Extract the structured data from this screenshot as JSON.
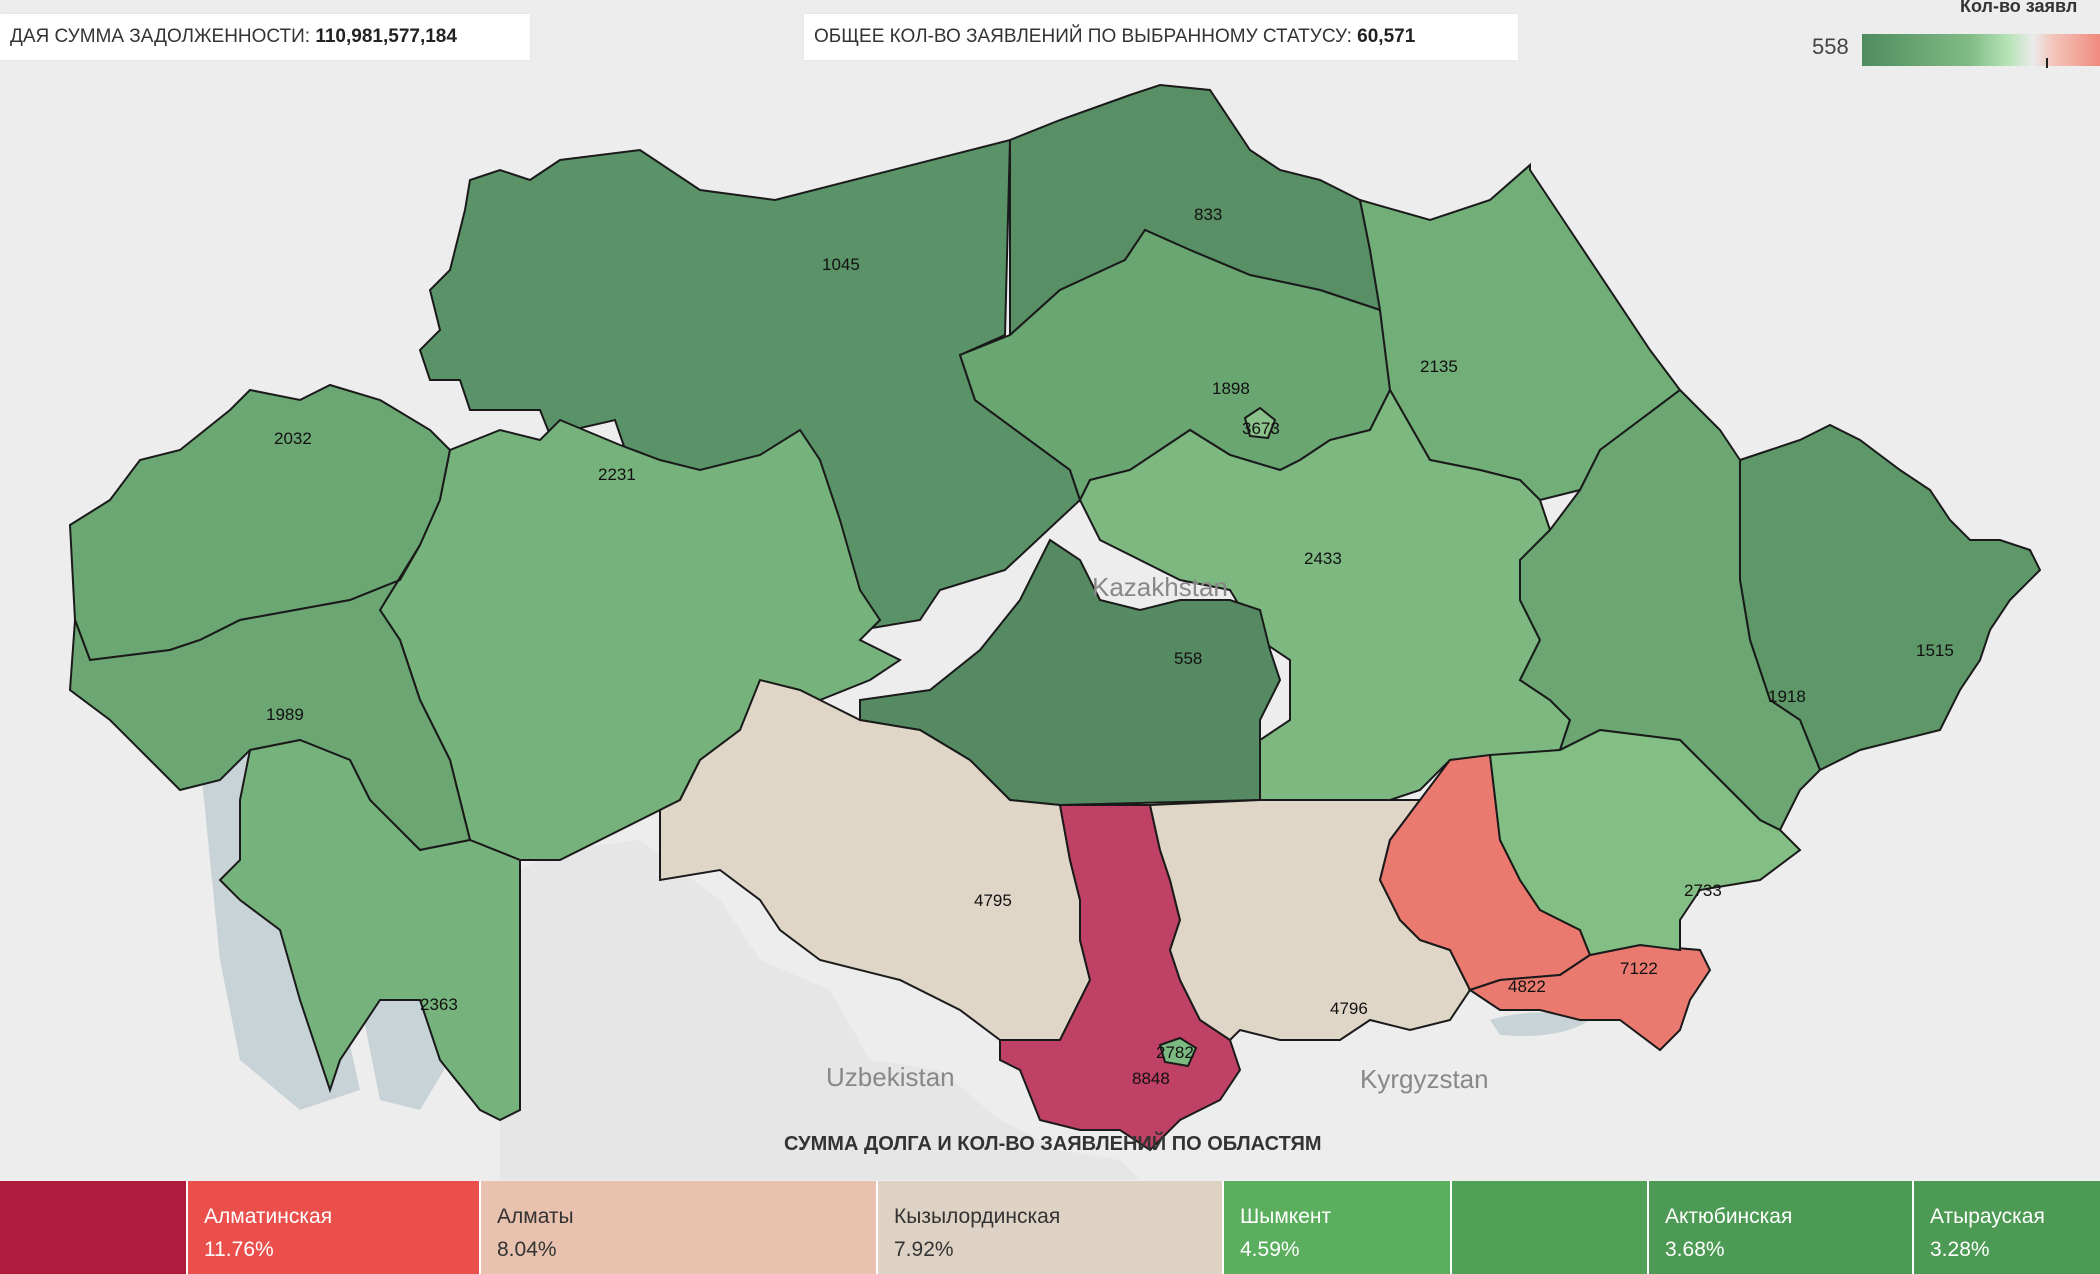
{
  "kpis": {
    "debt_label": "ДАЯ СУММА ЗАДОЛЖЕННОСТИ:",
    "debt_value": "110,981,577,184",
    "count_label": "ОБЩЕЕ КОЛ-ВО ЗАЯВЛЕНИЙ ПО ВЫБРАННОМУ СТАТУСУ:",
    "count_value": "60,571"
  },
  "legend": {
    "title": "Кол-во заявл",
    "min": "558",
    "colors": [
      "#4e8c5e",
      "#7fbb84",
      "#eaeaea",
      "#f08a7e"
    ]
  },
  "map": {
    "country_labels": [
      "Kazakhstan",
      "Uzbekistan",
      "Kyrgyzstan"
    ],
    "title": "СУММА ДОЛГА И КОЛ-ВО ЗАЯВЛЕНИЙ ПО ОБЛАСТЯМ",
    "regions": [
      {
        "id": "r1045",
        "label": "1045",
        "color": "#5b9368"
      },
      {
        "id": "r833",
        "label": "833",
        "color": "#588f65"
      },
      {
        "id": "r1898",
        "label": "1898",
        "color": "#6aa672"
      },
      {
        "id": "r3673",
        "label": "3673",
        "color": "#8bc28a"
      },
      {
        "id": "r2135",
        "label": "2135",
        "color": "#72ae78"
      },
      {
        "id": "r2032",
        "label": "2032",
        "color": "#6ba773"
      },
      {
        "id": "r2231",
        "label": "2231",
        "color": "#76b27b"
      },
      {
        "id": "r2433",
        "label": "2433",
        "color": "#7cb880"
      },
      {
        "id": "r558",
        "label": "558",
        "color": "#558a62"
      },
      {
        "id": "r1515",
        "label": "1515",
        "color": "#5e9869"
      },
      {
        "id": "r1918",
        "label": "1918",
        "color": "#6ba673"
      },
      {
        "id": "r1989",
        "label": "1989",
        "color": "#6ba673"
      },
      {
        "id": "r2363",
        "label": "2363",
        "color": "#76b27b"
      },
      {
        "id": "r4795",
        "label": "4795",
        "color": "#e0d6c8"
      },
      {
        "id": "r8848",
        "label": "8848",
        "color": "#bf4266"
      },
      {
        "id": "r2782",
        "label": "2782",
        "color": "#7dba81"
      },
      {
        "id": "r4796",
        "label": "4796",
        "color": "#e0d6c8"
      },
      {
        "id": "r4822",
        "label": "4822",
        "color": "#ea7a70"
      },
      {
        "id": "r7122",
        "label": "7122",
        "color": "#ea7a70"
      },
      {
        "id": "r2733",
        "label": "2733",
        "color": "#83bf84"
      }
    ]
  },
  "treemap": [
    {
      "name": "",
      "pct": "",
      "color": "#b01a3c"
    },
    {
      "name": "Алматинская",
      "pct": "11.76%",
      "color": "#eb4f4c"
    },
    {
      "name": "Алматы",
      "pct": "8.04%",
      "color": "#e8c2af"
    },
    {
      "name": "Кызылординская",
      "pct": "7.92%",
      "color": "#ddd2c4"
    },
    {
      "name": "Шымкент",
      "pct": "4.59%",
      "color": "#5aae5d"
    },
    {
      "name": "",
      "pct": "",
      "color": "#50a055"
    },
    {
      "name": "Актюбинская",
      "pct": "3.68%",
      "color": "#4c9a53"
    },
    {
      "name": "Атырауская",
      "pct": "3.28%",
      "color": "#4c9a53"
    }
  ]
}
